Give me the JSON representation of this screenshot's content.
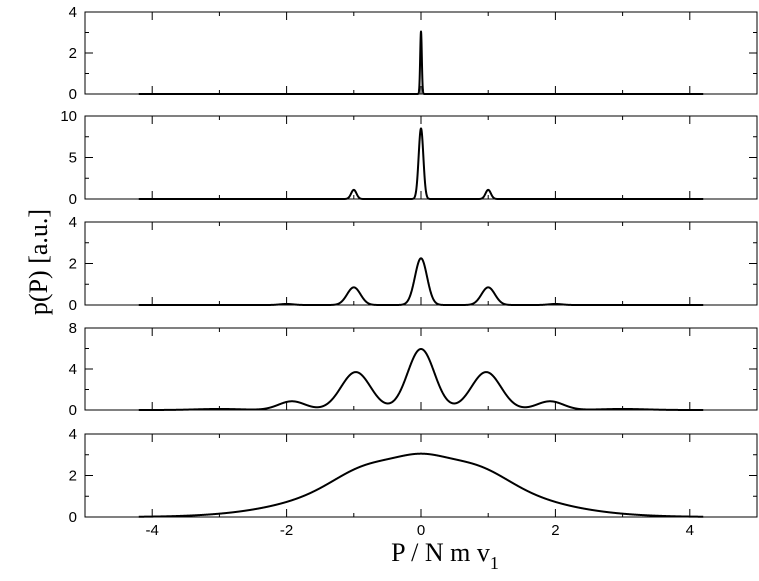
{
  "chart_data": {
    "type": "line",
    "xlabel": "P / N m v",
    "xlabel_subscript": "1",
    "ylabel": "p(P)  [a.u.]",
    "xlim": [
      -5,
      5
    ],
    "x_ticks": [
      -4,
      -2,
      0,
      2,
      4
    ],
    "panels": [
      {
        "ylim": [
          0,
          4
        ],
        "y_ticks": [
          0,
          2,
          4
        ],
        "peaks": [
          {
            "center": 0,
            "height": 3.05,
            "sigma": 0.012
          }
        ]
      },
      {
        "ylim": [
          0,
          10
        ],
        "y_ticks": [
          0,
          5,
          10
        ],
        "peaks": [
          {
            "center": -1,
            "height": 1.1,
            "sigma": 0.04
          },
          {
            "center": 0,
            "height": 8.5,
            "sigma": 0.035
          },
          {
            "center": 1,
            "height": 1.1,
            "sigma": 0.04
          }
        ]
      },
      {
        "ylim": [
          0,
          4
        ],
        "y_ticks": [
          0,
          2,
          4
        ],
        "peaks": [
          {
            "center": -2,
            "height": 0.05,
            "sigma": 0.1
          },
          {
            "center": -1,
            "height": 0.85,
            "sigma": 0.1
          },
          {
            "center": 0,
            "height": 2.25,
            "sigma": 0.09
          },
          {
            "center": 1,
            "height": 0.85,
            "sigma": 0.1
          },
          {
            "center": 2,
            "height": 0.05,
            "sigma": 0.1
          }
        ]
      },
      {
        "ylim": [
          0,
          8
        ],
        "y_ticks": [
          0,
          4,
          8
        ],
        "peaks": [
          {
            "center": -3,
            "height": 0.1,
            "sigma": 0.35
          },
          {
            "center": -1.92,
            "height": 0.85,
            "sigma": 0.2
          },
          {
            "center": -0.97,
            "height": 3.7,
            "sigma": 0.22
          },
          {
            "center": 0,
            "height": 5.95,
            "sigma": 0.2
          },
          {
            "center": 0.97,
            "height": 3.7,
            "sigma": 0.22
          },
          {
            "center": 1.92,
            "height": 0.85,
            "sigma": 0.2
          },
          {
            "center": 3,
            "height": 0.1,
            "sigma": 0.35
          }
        ]
      },
      {
        "ylim": [
          0,
          4
        ],
        "y_ticks": [
          0,
          2,
          4
        ],
        "peaks": [
          {
            "center": 0,
            "height": 2.3,
            "sigma": 1.3
          },
          {
            "center": -0.85,
            "height": 0.6,
            "sigma": 0.45
          },
          {
            "center": 0.85,
            "height": 0.6,
            "sigma": 0.45
          },
          {
            "center": 0,
            "height": 0.55,
            "sigma": 0.35
          }
        ]
      }
    ]
  }
}
